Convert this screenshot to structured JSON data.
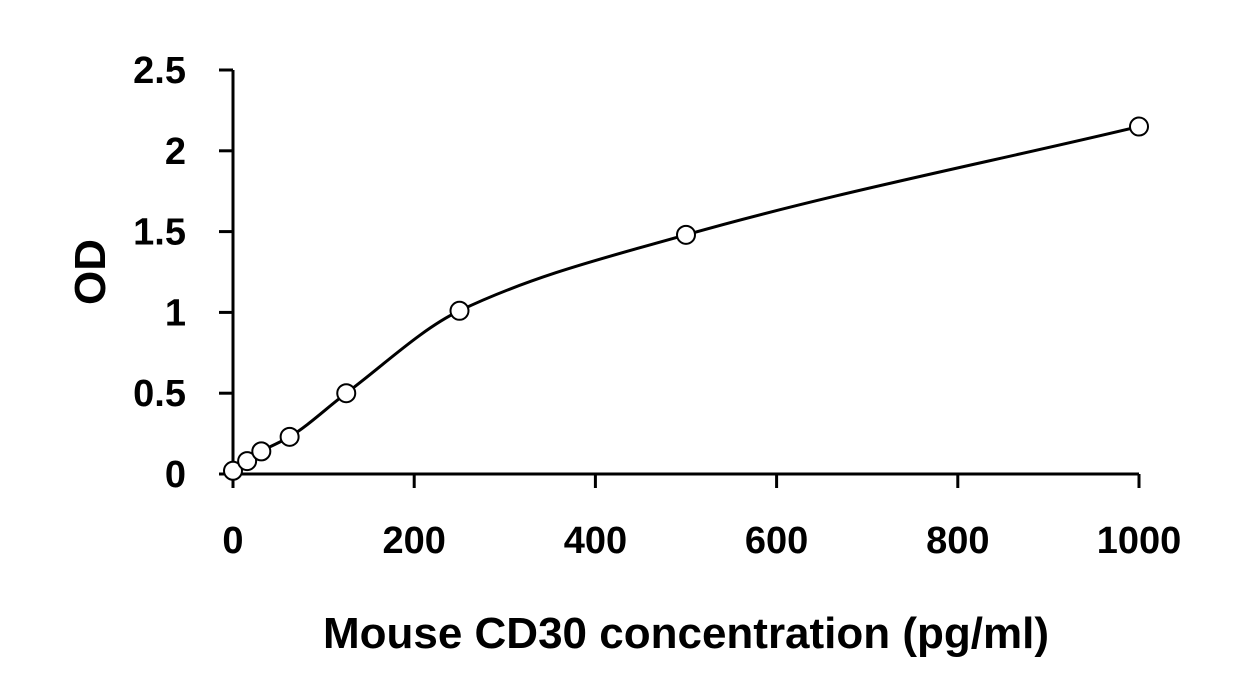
{
  "chart_data": {
    "type": "scatter",
    "title": "",
    "xlabel": "Mouse CD30 concentration (pg/ml)",
    "ylabel": "OD",
    "xlim": [
      0,
      1000
    ],
    "ylim": [
      0,
      2.5
    ],
    "x_ticks": [
      0,
      200,
      400,
      600,
      800,
      1000
    ],
    "y_ticks": [
      0,
      0.5,
      1,
      1.5,
      2,
      2.5
    ],
    "x_tick_labels": [
      "0",
      "200",
      "400",
      "600",
      "800",
      "1000"
    ],
    "y_tick_labels": [
      "0",
      "0.5",
      "1",
      "1.5",
      "2",
      "2.5"
    ],
    "grid": false,
    "legend": "none",
    "series": [
      {
        "marker": "open-circle",
        "trendline": "smooth-fit",
        "x": [
          0,
          15.6,
          31.25,
          62.5,
          125,
          250,
          500,
          1000
        ],
        "y": [
          0.02,
          0.08,
          0.14,
          0.23,
          0.5,
          1.01,
          1.48,
          2.15
        ]
      }
    ],
    "colors": {
      "axis": "#000000",
      "marker_stroke": "#000000",
      "marker_fill": "#ffffff",
      "line": "#000000"
    }
  }
}
